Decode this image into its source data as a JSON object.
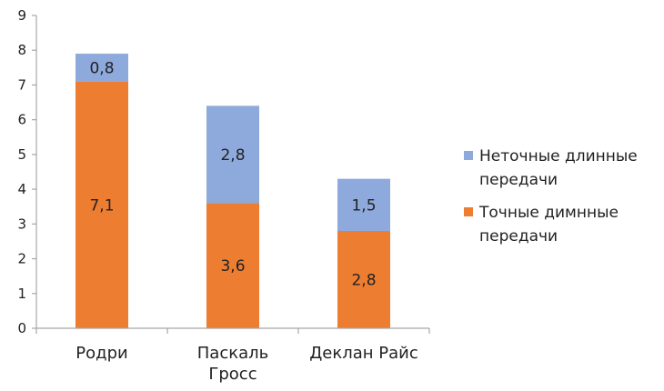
{
  "chart_data": {
    "type": "bar",
    "stacked": true,
    "categories": [
      [
        "Родри"
      ],
      [
        "Паскаль",
        "Гросс"
      ],
      [
        "Деклан Райс"
      ]
    ],
    "series": [
      {
        "name": [
          "Точные димнные",
          "передачи"
        ],
        "values": [
          7.1,
          3.6,
          2.8
        ],
        "labels": [
          "7,1",
          "3,6",
          "2,8"
        ],
        "color": "#ED7D31"
      },
      {
        "name": [
          "Неточные длинные",
          "передачи"
        ],
        "values": [
          0.8,
          2.8,
          1.5
        ],
        "labels": [
          "0,8",
          "2,8",
          "1,5"
        ],
        "color": "#8EA9DB"
      }
    ],
    "ylim": [
      0,
      9
    ],
    "yticks": [
      "0",
      "1",
      "2",
      "3",
      "4",
      "5",
      "6",
      "7",
      "8",
      "9"
    ],
    "grid": false,
    "legend_position": "right",
    "legend_order": [
      1,
      0
    ]
  }
}
